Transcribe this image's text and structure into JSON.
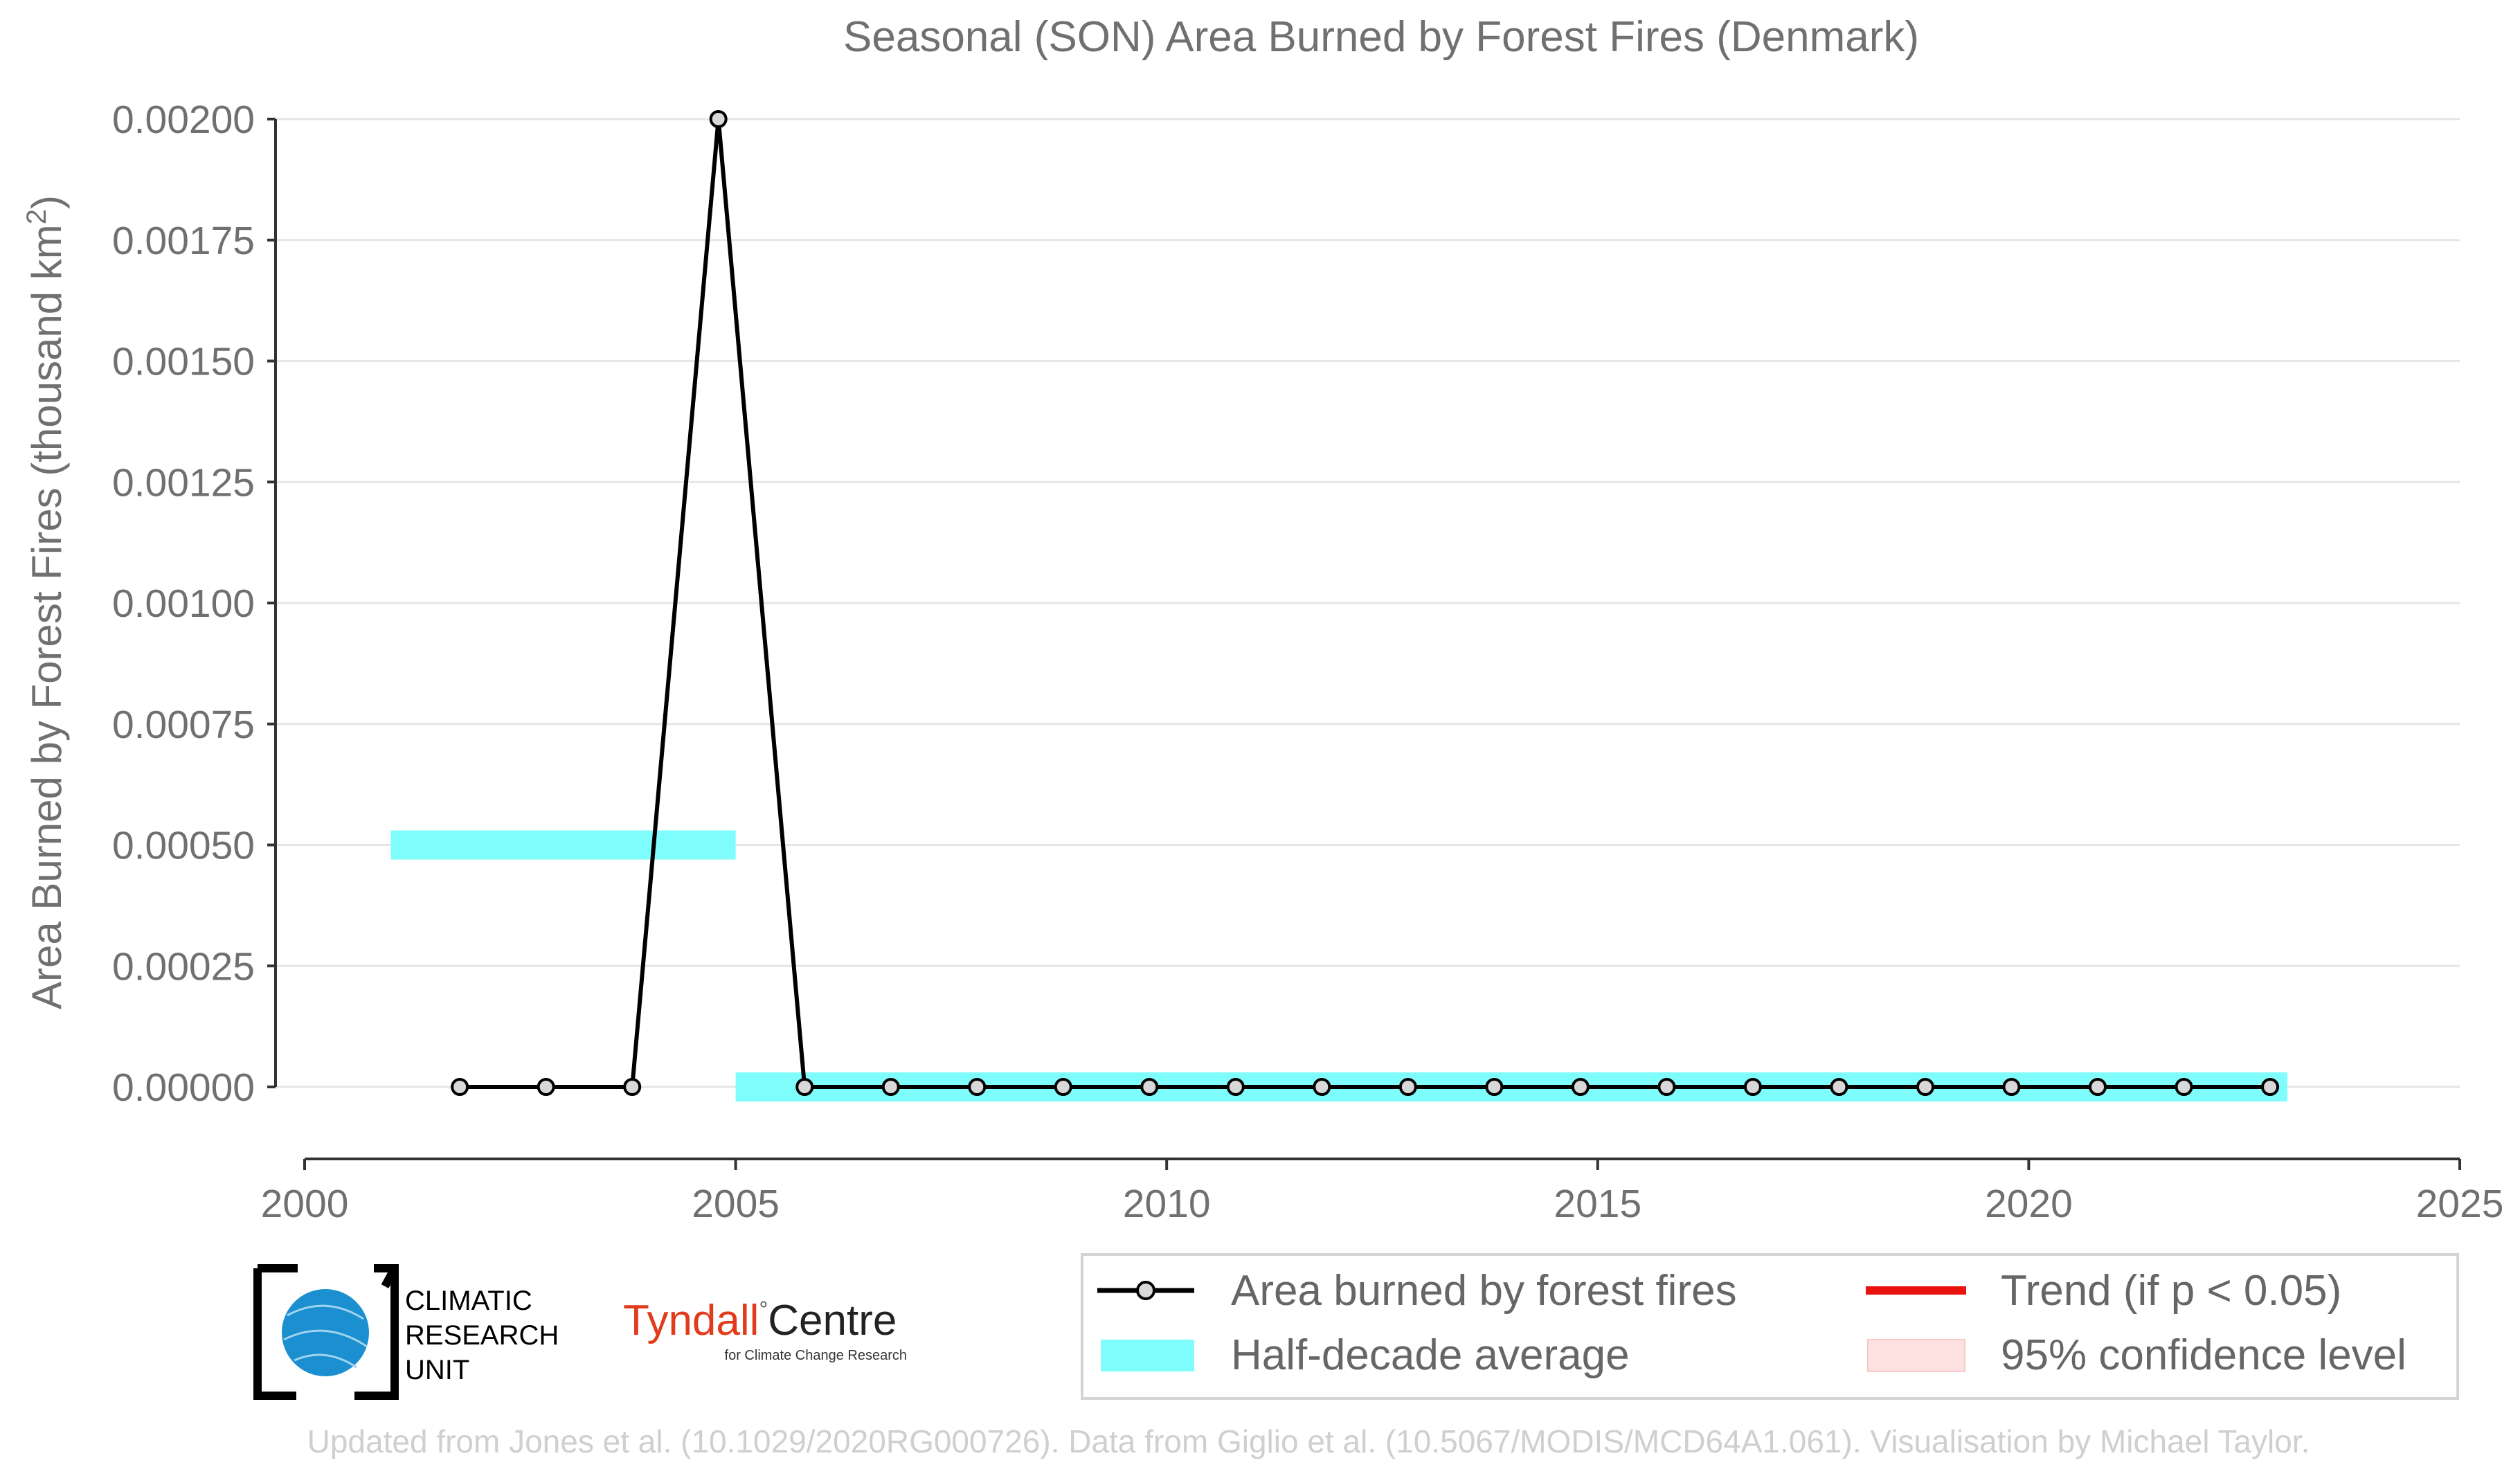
{
  "chart_data": {
    "type": "line",
    "title": "Seasonal (SON) Area Burned by Forest Fires (Denmark)",
    "ylabel_main": "Area Burned by Forest Fires (thousand km",
    "ylabel_sup": "2",
    "ylabel_end": ")",
    "xlim": [
      2000,
      2025
    ],
    "ylim": [
      -0.00015,
      0.0021
    ],
    "x_ticks": [
      2000,
      2005,
      2010,
      2015,
      2020,
      2025
    ],
    "x_tick_labels": [
      "2000",
      "2005",
      "2010",
      "2015",
      "2020",
      "2025"
    ],
    "y_ticks": [
      0,
      0.00025,
      0.0005,
      0.00075,
      0.001,
      0.00125,
      0.0015,
      0.00175,
      0.002
    ],
    "y_tick_labels": [
      "0.00000",
      "0.00025",
      "0.00050",
      "0.00075",
      "0.00100",
      "0.00125",
      "0.00150",
      "0.00175",
      "0.00200"
    ],
    "grid": true,
    "series": [
      {
        "name": "Area burned by forest fires",
        "color": "#000000",
        "x": [
          2001.8,
          2002.8,
          2003.8,
          2004.8,
          2005.8,
          2006.8,
          2007.8,
          2008.8,
          2009.8,
          2010.8,
          2011.8,
          2012.8,
          2013.8,
          2014.8,
          2015.8,
          2016.8,
          2017.8,
          2018.8,
          2019.8,
          2020.8,
          2021.8,
          2022.8
        ],
        "y": [
          0,
          0,
          0,
          0.002,
          0,
          0,
          0,
          0,
          0,
          0,
          0,
          0,
          0,
          0,
          0,
          0,
          0,
          0,
          0,
          0,
          0,
          0
        ]
      }
    ],
    "half_decade_average": {
      "name": "Half-decade average",
      "color": "#7ffcfc",
      "segments": [
        {
          "x_start": 2001,
          "x_end": 2005,
          "y": 0.0005
        },
        {
          "x_start": 2005,
          "x_end": 2023,
          "y": 0
        }
      ]
    },
    "legend": {
      "placement": "bottom-right",
      "items": [
        {
          "key": "line",
          "label": "Area burned by forest fires",
          "color": "#000000"
        },
        {
          "key": "trend",
          "label": "Trend (if p < 0.05)",
          "color": "#e8120e"
        },
        {
          "key": "avg",
          "label": "Half-decade average",
          "color": "#7ffcfc"
        },
        {
          "key": "ci",
          "label": "95% confidence level",
          "color": "#fde0e0"
        }
      ]
    }
  },
  "logos": {
    "cru_lines": [
      "CLIMATIC",
      "RESEARCH",
      "UNIT"
    ],
    "tyndall_main": "Tyndall",
    "tyndall_centre": "Centre",
    "tyndall_sub": "for Climate Change Research"
  },
  "footer": "Updated from Jones et al. (10.1029/2020RG000726). Data from Giglio et al. (10.5067/MODIS/MCD64A1.061). Visualisation by Michael Taylor."
}
